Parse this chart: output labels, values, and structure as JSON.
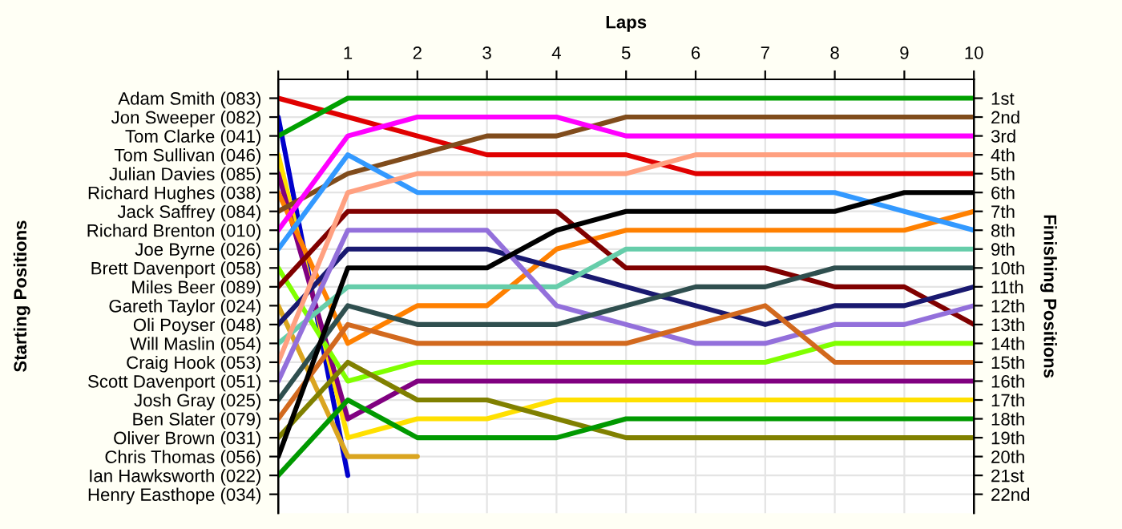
{
  "chart_data": {
    "type": "line",
    "xlabel": "Laps",
    "y2label": "Finishing Positions",
    "x": [
      0,
      1,
      2,
      3,
      4,
      5,
      6,
      7,
      8,
      9,
      10
    ],
    "xlim": [
      0,
      10
    ],
    "xticks": [
      {
        "value": 0,
        "label": null
      },
      1,
      2,
      3,
      4,
      5,
      6,
      7,
      8,
      9,
      10
    ],
    "annotations": [
      "Starting Positions",
      "Adam Smith (083)",
      "Jon Sweeper (082)",
      "Tom Clarke (041)",
      "Tom Sullivan (046)",
      "Julian Davies (085)",
      "Richard Hughes (038)",
      "Jack Saffrey (084)",
      "Richard Brenton (010)",
      "Joe Byrne (026)",
      "Brett Davenport (058)",
      "Miles Beer (089)",
      "Gareth Taylor (024)",
      "Oli Poyser (048)",
      "Will Maslin (054)",
      "Craig Hook (053)",
      "Scott Davenport (051)",
      "Josh Gray (025)",
      "Ben Slater (079)",
      "Oliver Brown (031)",
      "Chris Thomas (056)",
      "Ian Hawksworth (022)",
      "Henry Easthope (034)"
    ],
    "y2lim": [
      23,
      0
    ],
    "y2ticks": [
      {
        "value": 1,
        "label": "1st"
      },
      {
        "value": 2,
        "label": "2nd"
      },
      {
        "value": 3,
        "label": "3rd"
      },
      {
        "value": 4,
        "label": "4th"
      },
      {
        "value": 5,
        "label": "5th"
      },
      {
        "value": 6,
        "label": "6th"
      },
      {
        "value": 7,
        "label": "7th"
      },
      {
        "value": 8,
        "label": "8th"
      },
      {
        "value": 9,
        "label": "9th"
      },
      {
        "value": 10,
        "label": "10th"
      },
      {
        "value": 11,
        "label": "11th"
      },
      {
        "value": 12,
        "label": "12th"
      },
      {
        "value": 13,
        "label": "13th"
      },
      {
        "value": 14,
        "label": "14th"
      },
      {
        "value": 15,
        "label": "15th"
      },
      {
        "value": 16,
        "label": "16th"
      },
      {
        "value": 17,
        "label": "17th"
      },
      {
        "value": 18,
        "label": "18th"
      },
      {
        "value": 19,
        "label": "19th"
      },
      {
        "value": 20,
        "label": "20th"
      },
      {
        "value": 21,
        "label": "21st"
      },
      {
        "value": 22,
        "label": "22nd"
      }
    ],
    "grid": true,
    "legend": false,
    "marker": "none",
    "line_style": "solid",
    "series": [
      {
        "color": "#e00000",
        "axis": "y2",
        "values": [
          1,
          2,
          3,
          4,
          4,
          4,
          5,
          5,
          5,
          5,
          5
        ]
      },
      {
        "color": "#0000cc",
        "axis": "y2",
        "values": [
          2,
          21,
          null,
          null,
          null,
          null,
          null,
          null,
          null,
          null,
          null
        ]
      },
      {
        "color": "#00a000",
        "axis": "y2",
        "values": [
          3,
          1,
          1,
          1,
          1,
          1,
          1,
          1,
          1,
          1,
          1
        ]
      },
      {
        "color": "#ffe000",
        "axis": "y2",
        "values": [
          4,
          19,
          18,
          18,
          17,
          17,
          17,
          17,
          17,
          17,
          17
        ]
      },
      {
        "color": "#800080",
        "axis": "y2",
        "values": [
          5,
          18,
          16,
          16,
          16,
          16,
          16,
          16,
          16,
          16,
          16
        ]
      },
      {
        "color": "#ff8000",
        "axis": "y2",
        "values": [
          6,
          14,
          12,
          12,
          9,
          8,
          8,
          8,
          8,
          8,
          7
        ]
      },
      {
        "color": "#804c1c",
        "axis": "y2",
        "values": [
          7,
          5,
          4,
          3,
          3,
          2,
          2,
          2,
          2,
          2,
          2
        ]
      },
      {
        "color": "#ff00ff",
        "axis": "y2",
        "values": [
          8,
          3,
          2,
          2,
          2,
          3,
          3,
          3,
          3,
          3,
          3
        ]
      },
      {
        "color": "#3399ff",
        "axis": "y2",
        "values": [
          9,
          4,
          6,
          6,
          6,
          6,
          6,
          6,
          6,
          7,
          8
        ]
      },
      {
        "color": "#80ff00",
        "axis": "y2",
        "values": [
          10,
          16,
          15,
          15,
          15,
          15,
          15,
          15,
          14,
          14,
          14
        ]
      },
      {
        "color": "#800000",
        "axis": "y2",
        "values": [
          11,
          7,
          7,
          7,
          7,
          10,
          10,
          10,
          11,
          11,
          13
        ]
      },
      {
        "color": "#daa520",
        "axis": "y2",
        "values": [
          12,
          20,
          20,
          null,
          null,
          null,
          null,
          null,
          null,
          null,
          null
        ]
      },
      {
        "color": "#191970",
        "axis": "y2",
        "values": [
          13,
          9,
          9,
          9,
          10,
          11,
          12,
          13,
          12,
          12,
          11
        ]
      },
      {
        "color": "#66cdaa",
        "axis": "y2",
        "values": [
          14,
          11,
          11,
          11,
          11,
          9,
          9,
          9,
          9,
          9,
          9
        ]
      },
      {
        "color": "#ffa080",
        "axis": "y2",
        "values": [
          15,
          6,
          5,
          5,
          5,
          5,
          4,
          4,
          4,
          4,
          4
        ]
      },
      {
        "color": "#9370db",
        "axis": "y2",
        "values": [
          16,
          8,
          8,
          8,
          12,
          13,
          14,
          14,
          13,
          13,
          12
        ]
      },
      {
        "color": "#2f4f4f",
        "axis": "y2",
        "values": [
          17,
          12,
          13,
          13,
          13,
          12,
          11,
          11,
          10,
          10,
          10
        ]
      },
      {
        "color": "#d2691e",
        "axis": "y2",
        "values": [
          18,
          13,
          14,
          14,
          14,
          14,
          13,
          12,
          15,
          15,
          15
        ]
      },
      {
        "color": "#808000",
        "axis": "y2",
        "values": [
          19,
          15,
          17,
          17,
          18,
          19,
          19,
          19,
          19,
          19,
          19
        ]
      },
      {
        "color": "#000000",
        "axis": "y2",
        "values": [
          20,
          10,
          10,
          10,
          8,
          7,
          7,
          7,
          7,
          6,
          6
        ]
      },
      {
        "color": "#009900",
        "axis": "y2",
        "values": [
          21,
          17,
          19,
          19,
          19,
          18,
          18,
          18,
          18,
          18,
          18
        ]
      }
    ]
  }
}
